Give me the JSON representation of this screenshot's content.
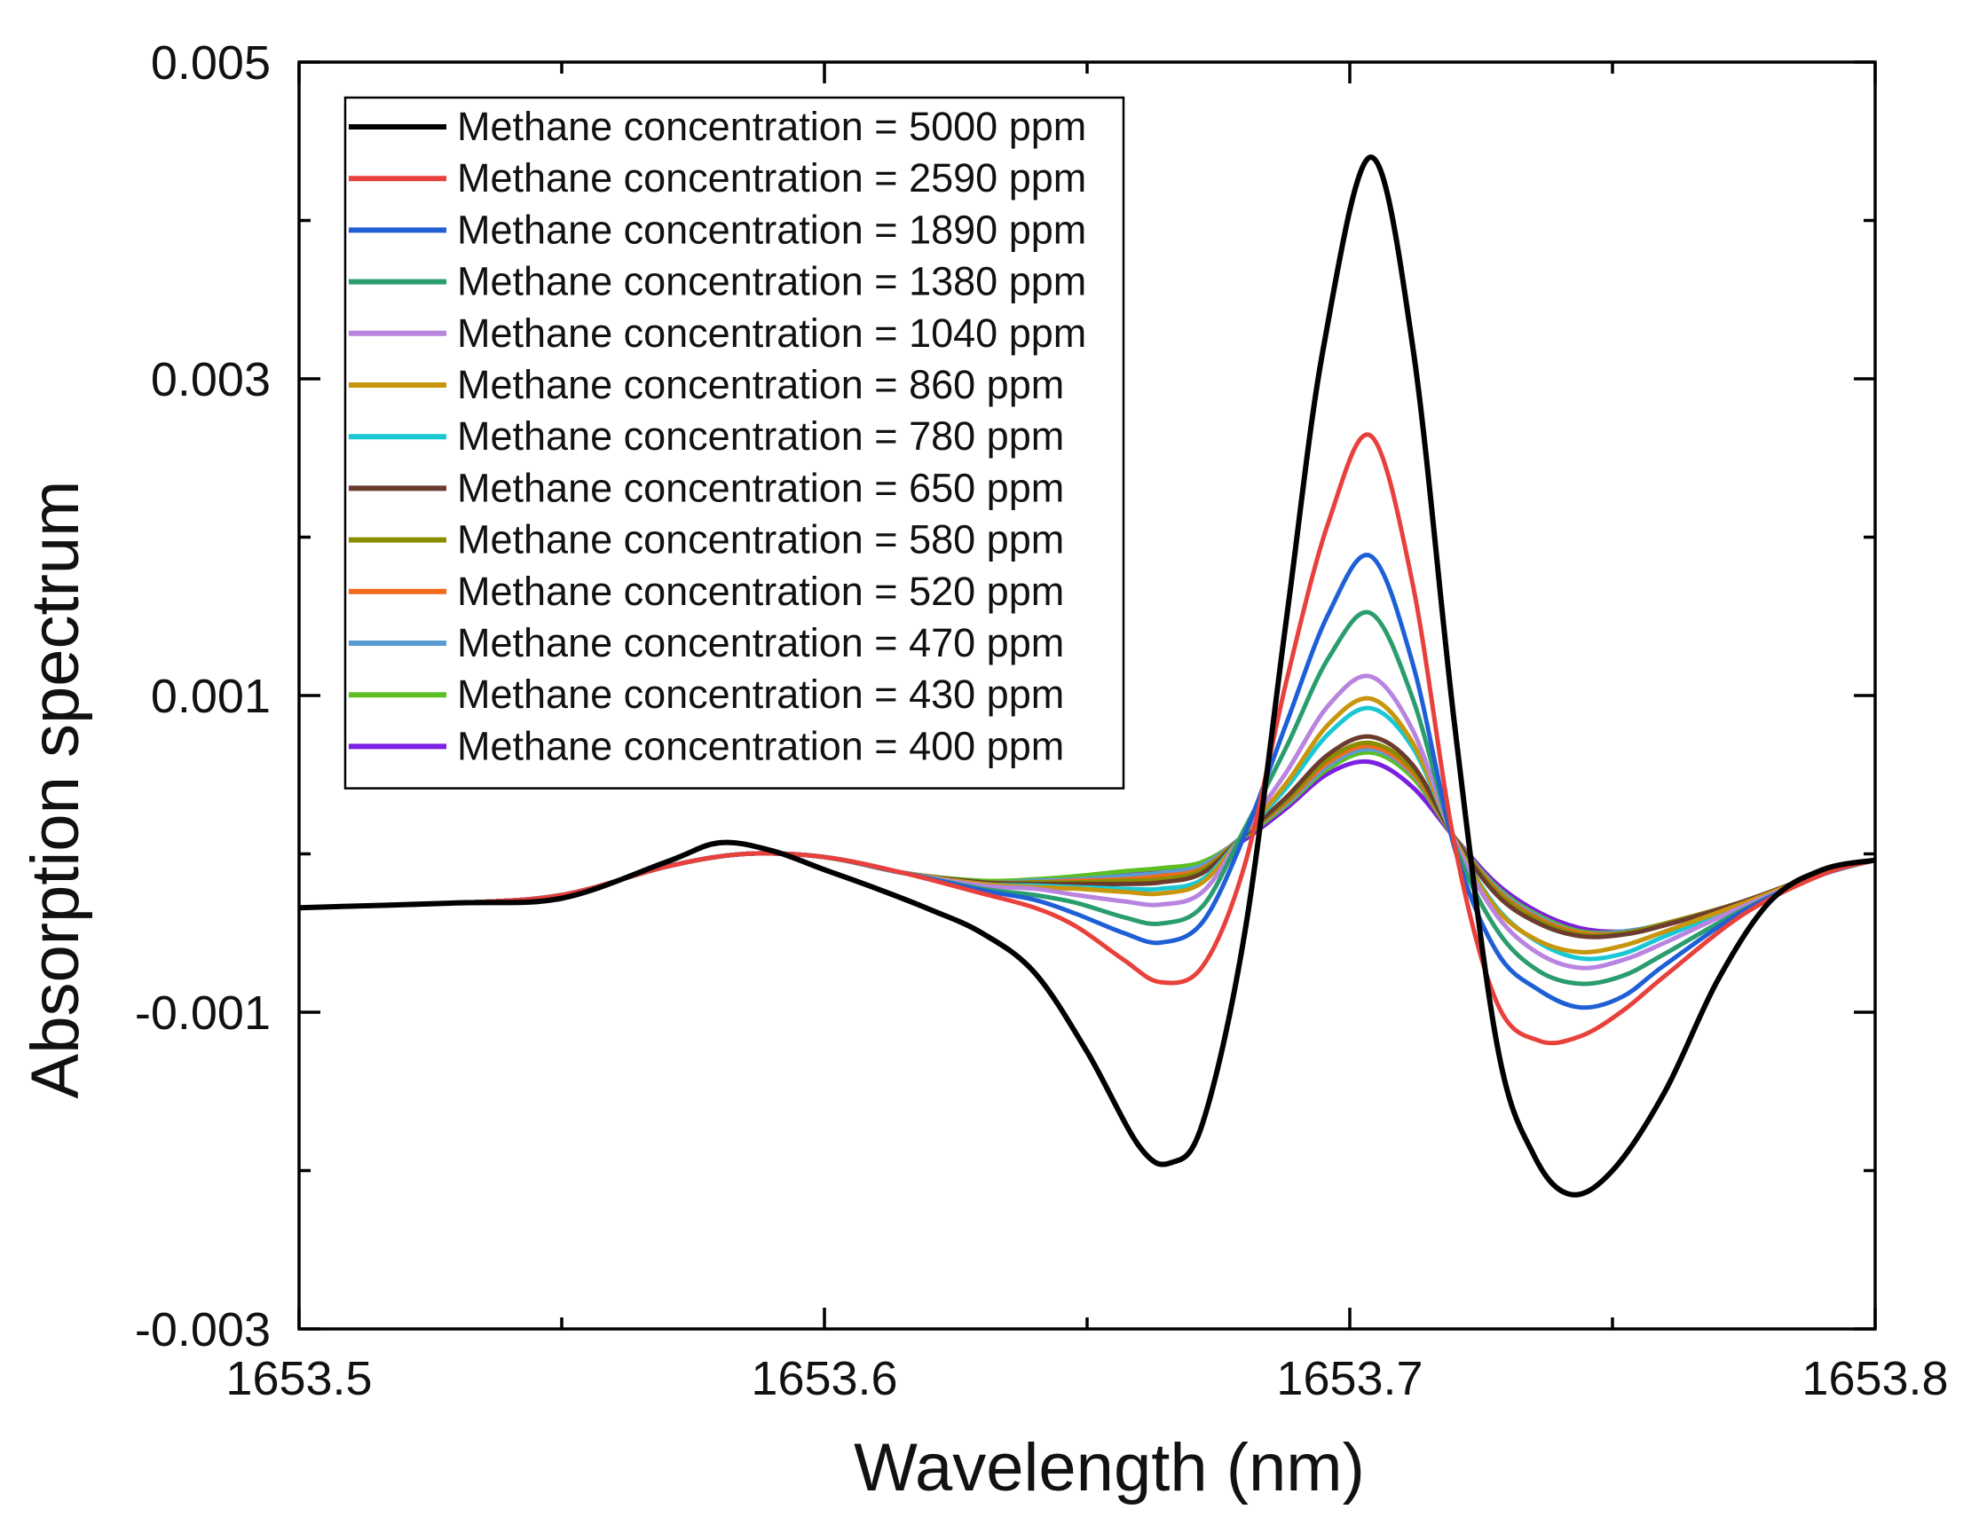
{
  "chart_data": {
    "type": "line",
    "title": "",
    "xlabel": "Wavelength (nm)",
    "ylabel": "Absorption spectrum",
    "xlim": [
      1653.5,
      1653.8
    ],
    "ylim": [
      -0.003,
      0.005
    ],
    "x_ticks": [
      1653.5,
      1653.6,
      1653.7,
      1653.8
    ],
    "x_tick_labels": [
      "1653.5",
      "1653.6",
      "1653.7",
      "1653.8"
    ],
    "x_minor_ticks": [
      1653.55,
      1653.65,
      1653.75
    ],
    "y_ticks": [
      -0.003,
      -0.001,
      0.001,
      0.003,
      0.005
    ],
    "y_tick_labels": [
      "-0.003",
      "-0.001",
      "0.001",
      "0.003",
      "0.005"
    ],
    "y_minor_ticks": [
      -0.002,
      0,
      0.002,
      0.004
    ],
    "grid": false,
    "legend_position": "top-left",
    "shape_x": [
      1653.5,
      1653.53,
      1653.55,
      1653.57,
      1653.585,
      1653.6,
      1653.615,
      1653.63,
      1653.64,
      1653.648,
      1653.657,
      1653.664,
      1653.672,
      1653.68,
      1653.688,
      1653.696,
      1653.704,
      1653.712,
      1653.72,
      1653.728,
      1653.736,
      1653.744,
      1653.752,
      1653.76,
      1653.775,
      1653.79,
      1653.8
    ],
    "base_curve": [
      -0.00034,
      -0.00031,
      -0.00026,
      -8e-05,
      0.0,
      -2e-05,
      -0.00012,
      -0.00018,
      -0.00018,
      -0.00013,
      -0.00011,
      -9e-05,
      -4e-05,
      0.0001,
      0.0003,
      0.0005,
      0.00058,
      0.0004,
      0.0001,
      -0.00017,
      -0.00036,
      -0.00048,
      -0.0005,
      -0.00045,
      -0.0003,
      -0.00012,
      -4e-05
    ],
    "peak_shape": [
      0,
      0,
      0,
      0,
      0,
      0,
      0.02,
      0.1,
      0.22,
      0.45,
      0.78,
      1.0,
      0.82,
      0.3,
      -0.45,
      -1.0,
      -1.06,
      -0.7,
      -0.1,
      0.3,
      0.65,
      0.84,
      0.72,
      0.45,
      0.12,
      0.02,
      0
    ],
    "series": [
      {
        "name": "Methane concentration = 5000 ppm",
        "color": "#000000",
        "peak_depth": 0.0018,
        "x": [
          1653.5,
          1653.53,
          1653.55,
          1653.57,
          1653.58,
          1653.59,
          1653.6,
          1653.61,
          1653.62,
          1653.63,
          1653.64,
          1653.65,
          1653.66,
          1653.666,
          1653.672,
          1653.68,
          1653.688,
          1653.695,
          1653.704,
          1653.712,
          1653.72,
          1653.728,
          1653.735,
          1653.742,
          1653.75,
          1653.76,
          1653.77,
          1653.78,
          1653.79,
          1653.8
        ],
        "values": [
          -0.00034,
          -0.00031,
          -0.00028,
          -5e-05,
          7e-05,
          2e-05,
          -0.0001,
          -0.00022,
          -0.00035,
          -0.0005,
          -0.00075,
          -0.00125,
          -0.00185,
          -0.00195,
          -0.0017,
          -0.0005,
          0.0015,
          0.0032,
          0.0044,
          0.0032,
          0.0008,
          -0.0012,
          -0.0019,
          -0.00215,
          -0.002,
          -0.0015,
          -0.0008,
          -0.0003,
          -0.0001,
          -4e-05
        ]
      },
      {
        "name": "Methane concentration = 2590 ppm",
        "color": "#e8413c",
        "peak_depth": 0.00072,
        "values": [
          -0.00034,
          -0.00031,
          -0.00026,
          -8e-05,
          0.0,
          -2e-05,
          -0.00012,
          -0.00025,
          -0.00034,
          -0.00046,
          -0.00067,
          -0.00081,
          -0.00071,
          -7e-05,
          0.0011,
          0.0021,
          0.00264,
          0.0017,
          5e-05,
          -0.00094,
          -0.00118,
          -0.00115,
          -0.00099,
          -0.00077,
          -0.00038,
          -0.00013,
          -4e-05
        ]
      },
      {
        "name": "Methane concentration = 1890 ppm",
        "color": "#1f5fd6",
        "peak_depth": 0.00055,
        "values": [
          -0.00034,
          -0.00031,
          -0.00026,
          -8e-05,
          0.0,
          -2e-05,
          -0.00012,
          -0.00023,
          -0.00029,
          -0.00038,
          -0.0005,
          -0.00056,
          -0.00043,
          0.00012,
          0.00083,
          0.00152,
          0.00188,
          0.0012,
          3e-05,
          -0.00062,
          -0.00086,
          -0.00097,
          -0.0009,
          -0.0007,
          -0.00036,
          -0.00013,
          -4e-05
        ]
      },
      {
        "name": "Methane concentration = 1380 ppm",
        "color": "#2a9d6f",
        "peak_depth": 0.00041,
        "values": [
          -0.00034,
          -0.00031,
          -0.00026,
          -8e-05,
          0.0,
          -2e-05,
          -0.00012,
          -0.00022,
          -0.00026,
          -0.00031,
          -0.0004,
          -0.00044,
          -0.00033,
          0.00016,
          0.00068,
          0.00124,
          0.00152,
          0.00098,
          6e-05,
          -0.00048,
          -0.00074,
          -0.00082,
          -0.00077,
          -0.00063,
          -0.00035,
          -0.00013,
          -4e-05
        ]
      },
      {
        "name": "Methane concentration = 1040 ppm",
        "color": "#b884e0",
        "peak_depth": 0.00028,
        "values": [
          -0.00034,
          -0.00031,
          -0.00026,
          -8e-05,
          0.0,
          -2e-05,
          -0.00012,
          -0.0002,
          -0.00022,
          -0.00026,
          -0.0003,
          -0.00032,
          -0.00024,
          0.00014,
          0.00052,
          0.00094,
          0.00112,
          0.00078,
          8e-05,
          -0.00039,
          -0.00063,
          -0.00072,
          -0.00067,
          -0.00056,
          -0.00033,
          -0.00013,
          -4e-05
        ]
      },
      {
        "name": "Methane concentration = 860 ppm",
        "color": "#c8960c",
        "peak_depth": 0.00021,
        "values": [
          -0.00034,
          -0.00031,
          -0.00026,
          -8e-05,
          0.0,
          -2e-05,
          -0.00012,
          -0.00019,
          -0.00021,
          -0.00022,
          -0.00024,
          -0.00025,
          -0.00018,
          0.00013,
          0.00045,
          0.00082,
          0.00098,
          0.0007,
          9e-05,
          -0.00035,
          -0.00055,
          -0.00062,
          -0.00058,
          -0.00049,
          -0.00031,
          -0.00012,
          -4e-05
        ]
      },
      {
        "name": "Methane concentration = 780 ppm",
        "color": "#19c8d4",
        "peak_depth": 0.00018,
        "values": [
          -0.00034,
          -0.00031,
          -0.00026,
          -8e-05,
          0.0,
          -2e-05,
          -0.00012,
          -0.00019,
          -0.0002,
          -0.00021,
          -0.00022,
          -0.00022,
          -0.00016,
          0.00013,
          0.00042,
          0.00076,
          0.00092,
          0.00067,
          9e-05,
          -0.00034,
          -0.00056,
          -0.00066,
          -0.00063,
          -0.00052,
          -0.00032,
          -0.00012,
          -4e-05
        ]
      },
      {
        "name": "Methane concentration = 650 ppm",
        "color": "#6b3c2e",
        "peak_depth": 0.00014,
        "values": [
          -0.00034,
          -0.00031,
          -0.00026,
          -8e-05,
          0.0,
          -2e-05,
          -0.00012,
          -0.00018,
          -0.00019,
          -0.00019,
          -0.00019,
          -0.00018,
          -0.00012,
          0.00012,
          0.00036,
          0.00063,
          0.00074,
          0.00056,
          0.0001,
          -0.00026,
          -0.00044,
          -0.00052,
          -0.00051,
          -0.00045,
          -0.0003,
          -0.00012,
          -4e-05
        ]
      },
      {
        "name": "Methane concentration = 580 ppm",
        "color": "#8c8c00",
        "peak_depth": 0.00012,
        "values": [
          -0.00034,
          -0.00031,
          -0.00026,
          -8e-05,
          0.0,
          -2e-05,
          -0.00012,
          -0.00018,
          -0.00018,
          -0.00018,
          -0.00017,
          -0.00016,
          -0.0001,
          0.00012,
          0.00034,
          0.0006,
          0.0007,
          0.00053,
          0.0001,
          -0.00024,
          -0.00042,
          -0.00051,
          -0.0005,
          -0.00044,
          -0.0003,
          -0.00012,
          -4e-05
        ]
      },
      {
        "name": "Methane concentration = 520 ppm",
        "color": "#f26b1d",
        "peak_depth": 0.0001,
        "values": [
          -0.00034,
          -0.00031,
          -0.00026,
          -8e-05,
          0.0,
          -2e-05,
          -0.00012,
          -0.00018,
          -0.00018,
          -0.00017,
          -0.00016,
          -0.00014,
          -9e-05,
          0.00012,
          0.00033,
          0.00058,
          0.00068,
          0.00051,
          0.0001,
          -0.00023,
          -0.00041,
          -0.0005,
          -0.0005,
          -0.00044,
          -0.0003,
          -0.00012,
          -4e-05
        ]
      },
      {
        "name": "Methane concentration = 470 ppm",
        "color": "#5a9bd5",
        "peak_depth": 8e-05,
        "values": [
          -0.00034,
          -0.00031,
          -0.00026,
          -8e-05,
          0.0,
          -2e-05,
          -0.00012,
          -0.00018,
          -0.00017,
          -0.00016,
          -0.00014,
          -0.00012,
          -7e-05,
          0.00012,
          0.00032,
          0.00056,
          0.00066,
          0.0005,
          0.0001,
          -0.00022,
          -0.0004,
          -0.0005,
          -0.00049,
          -0.00044,
          -0.0003,
          -0.00012,
          -4e-05
        ]
      },
      {
        "name": "Methane concentration = 430 ppm",
        "color": "#5bbf21",
        "peak_depth": 6e-05,
        "values": [
          -0.00034,
          -0.00031,
          -0.00026,
          -8e-05,
          0.0,
          -2e-05,
          -0.00012,
          -0.00017,
          -0.00016,
          -0.00014,
          -0.00011,
          -9e-05,
          -5e-05,
          0.00011,
          0.00031,
          0.00054,
          0.00064,
          0.00048,
          0.0001,
          -0.00021,
          -0.00039,
          -0.00049,
          -0.00049,
          -0.00044,
          -0.0003,
          -0.00012,
          -4e-05
        ]
      },
      {
        "name": "Methane concentration = 400 ppm",
        "color": "#7b1fe0",
        "peak_depth": 0.0,
        "values": [
          -0.00034,
          -0.00031,
          -0.00026,
          -8e-05,
          0.0,
          -2e-05,
          -0.00012,
          -0.00018,
          -0.00018,
          -0.00016,
          -0.00013,
          -0.00011,
          -6e-05,
          9e-05,
          0.00029,
          0.00051,
          0.00058,
          0.00042,
          0.0001,
          -0.00019,
          -0.00037,
          -0.00047,
          -0.00049,
          -0.00045,
          -0.0003,
          -0.00012,
          -4e-05
        ]
      }
    ]
  }
}
